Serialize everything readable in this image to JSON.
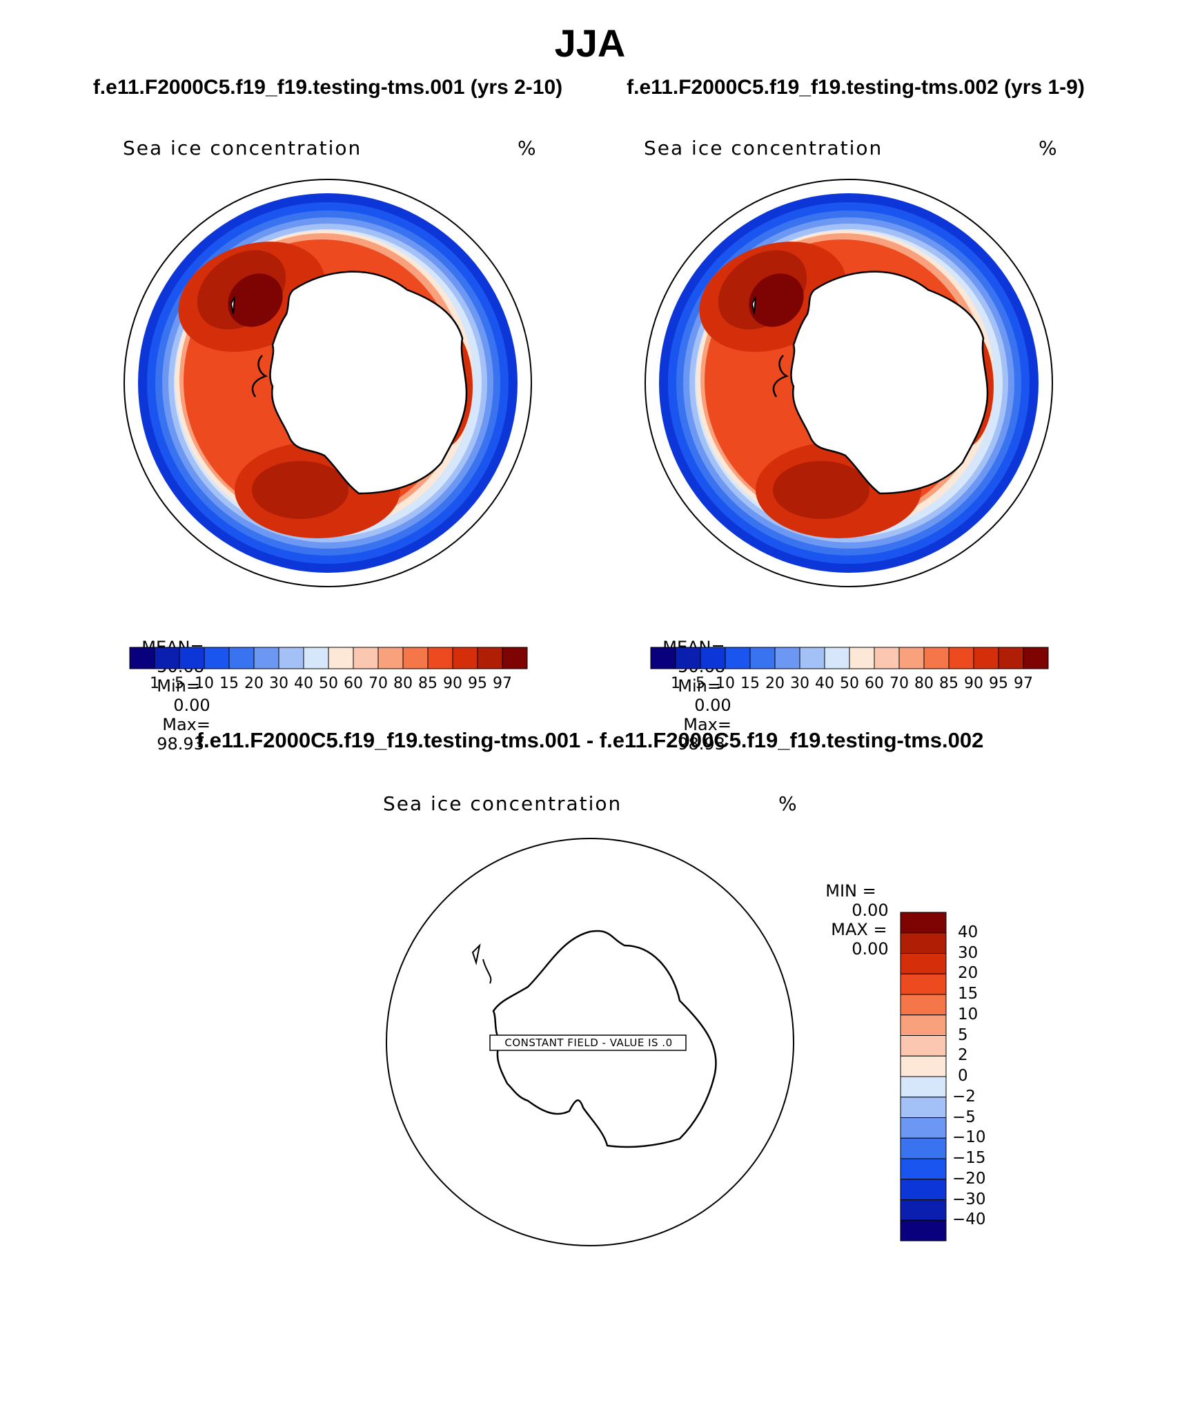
{
  "season_title": "JJA",
  "panels": [
    {
      "case_title": "f.e11.F2000C5.f19_f19.testing-tms.001 (yrs 2-10)",
      "variable": "Sea ice concentration",
      "units": "%",
      "mean_label": "MEAN=",
      "mean_value": "50.68",
      "min_label": "Min=",
      "min_value": "0.00",
      "max_label": "Max=",
      "max_value": "98.93"
    },
    {
      "case_title": "f.e11.F2000C5.f19_f19.testing-tms.002 (yrs 1-9)",
      "variable": "Sea ice concentration",
      "units": "%",
      "mean_label": "MEAN=",
      "mean_value": "50.68",
      "min_label": "Min=",
      "min_value": "0.00",
      "max_label": "Max=",
      "max_value": "98.93"
    }
  ],
  "colorbar": {
    "levels": [
      "1",
      "5",
      "10",
      "15",
      "20",
      "30",
      "40",
      "50",
      "60",
      "70",
      "80",
      "85",
      "90",
      "95",
      "97"
    ],
    "colors": [
      "#08007c",
      "#0a1fb0",
      "#0d36d8",
      "#1a55f0",
      "#3a73f0",
      "#6c98f3",
      "#a3c0f7",
      "#d6e6fb",
      "#fde8d8",
      "#fcc7b0",
      "#f9a07c",
      "#f57649",
      "#ee4a1f",
      "#d42e0a",
      "#b01e06",
      "#7e0403"
    ]
  },
  "difference": {
    "title": "f.e11.F2000C5.f19_f19.testing-tms.001 - f.e11.F2000C5.f19_f19.testing-tms.002",
    "variable": "Sea ice concentration",
    "units": "%",
    "min_label": "MIN =",
    "min_value": "0.00",
    "max_label": "MAX =",
    "max_value": "0.00",
    "constant_field_text": "CONSTANT FIELD - VALUE IS .0",
    "levels": [
      "40",
      "30",
      "20",
      "15",
      "10",
      "5",
      "2",
      "0",
      "−2",
      "−5",
      "−10",
      "−15",
      "−20",
      "−30",
      "−40"
    ],
    "colors": [
      "#7e0403",
      "#b01e06",
      "#d42e0a",
      "#ee4a1f",
      "#f57649",
      "#f9a07c",
      "#fcc7b0",
      "#fde8d8",
      "#d6e6fb",
      "#a3c0f7",
      "#6c98f3",
      "#3a73f0",
      "#1a55f0",
      "#0d36d8",
      "#0a1fb0",
      "#08007c"
    ]
  }
}
